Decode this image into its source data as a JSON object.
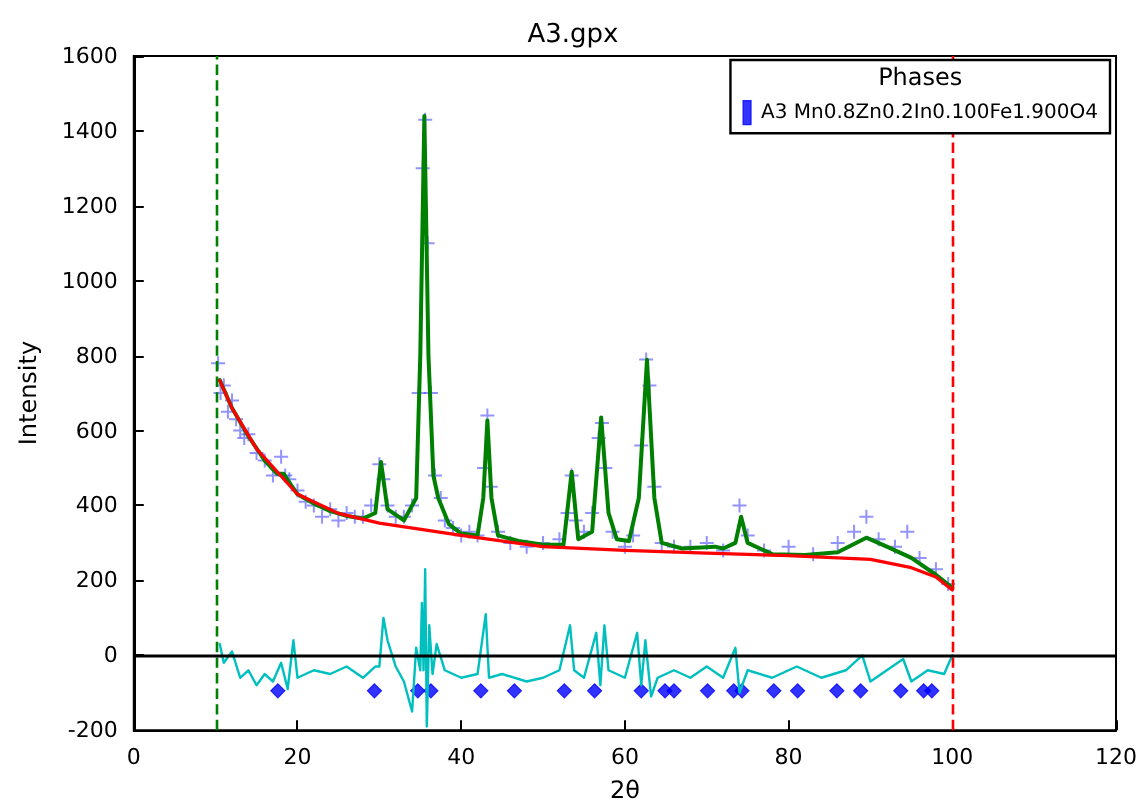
{
  "chart_data": {
    "type": "line",
    "title": "A3.gpx",
    "xlabel": "2θ",
    "ylabel": "Intensity",
    "legend_title": "Phases",
    "legend": "top right",
    "grid": false,
    "xlim": [
      0,
      120
    ],
    "xticks": [
      0,
      20,
      40,
      60,
      80,
      100,
      120
    ],
    "ylim": [
      -200,
      1600
    ],
    "yticks": [
      -200,
      0,
      200,
      400,
      600,
      800,
      1000,
      1200,
      1400,
      1600
    ],
    "ref_lines": [
      {
        "axis": "x",
        "value": 10,
        "color": "#008000",
        "line_style": "dashed"
      },
      {
        "axis": "x",
        "value": 100,
        "color": "#ff0000",
        "line_style": "dashed"
      },
      {
        "axis": "y",
        "value": 0,
        "color": "#000000",
        "line_style": "solid"
      }
    ],
    "series": [
      {
        "type": "scatter",
        "marker": "cross",
        "color": "#3b3bff",
        "x": [
          10.3,
          10.6,
          11,
          11.5,
          12,
          12.5,
          13,
          13.5,
          14,
          15,
          16,
          17,
          18,
          18.5,
          19,
          20,
          21,
          22,
          23,
          24,
          25,
          26,
          27,
          28,
          29,
          30,
          30.5,
          31,
          32,
          33,
          34,
          34.8,
          35.3,
          35.6,
          35.9,
          36.3,
          36.8,
          37.5,
          38,
          39,
          40,
          41,
          42,
          42.8,
          43.2,
          43.6,
          44.5,
          46,
          48,
          50,
          52,
          53,
          53.5,
          54,
          55,
          56,
          56.8,
          57.2,
          57.6,
          58.5,
          60,
          61,
          62,
          62.6,
          63,
          63.6,
          64.5,
          66,
          68,
          70,
          72,
          74,
          75,
          77,
          80,
          83,
          86,
          88,
          89.5,
          91,
          93,
          94.5,
          96,
          98,
          99.5
        ],
        "values": [
          780,
          700,
          720,
          650,
          680,
          630,
          600,
          580,
          590,
          540,
          520,
          480,
          530,
          480,
          470,
          440,
          410,
          400,
          370,
          390,
          360,
          380,
          370,
          370,
          400,
          510,
          470,
          400,
          370,
          370,
          400,
          700,
          1300,
          1430,
          1100,
          700,
          480,
          420,
          360,
          340,
          320,
          330,
          320,
          500,
          640,
          450,
          330,
          300,
          290,
          300,
          310,
          380,
          480,
          360,
          330,
          380,
          580,
          620,
          500,
          330,
          290,
          320,
          560,
          790,
          720,
          450,
          300,
          290,
          290,
          300,
          280,
          400,
          320,
          280,
          290,
          270,
          300,
          330,
          370,
          310,
          290,
          330,
          260,
          230,
          190
        ]
      },
      {
        "marker": "none",
        "color": "#008000",
        "x": [
          10.5,
          12,
          14,
          16,
          17.5,
          18.3,
          19.2,
          20,
          22,
          24,
          26,
          28,
          29.5,
          30.2,
          31,
          33,
          34.5,
          35,
          35.5,
          36,
          36.6,
          37.2,
          38.5,
          40,
          42,
          42.7,
          43.2,
          43.7,
          44.5,
          47,
          50,
          52.5,
          53.5,
          54.3,
          56,
          57.1,
          58,
          59,
          60.5,
          61.7,
          62.7,
          63.6,
          64.5,
          67,
          71,
          72,
          73.5,
          74.2,
          75,
          78,
          82,
          86,
          89.5,
          92,
          95,
          98,
          100
        ],
        "values": [
          735,
          660,
          585,
          520,
          485,
          485,
          455,
          430,
          405,
          385,
          372,
          365,
          380,
          516,
          390,
          360,
          420,
          800,
          1440,
          800,
          480,
          420,
          350,
          325,
          320,
          420,
          627,
          420,
          320,
          305,
          295,
          295,
          490,
          310,
          330,
          635,
          380,
          310,
          305,
          420,
          789,
          420,
          300,
          285,
          290,
          285,
          300,
          370,
          300,
          270,
          268,
          275,
          314,
          290,
          260,
          215,
          180
        ]
      },
      {
        "marker": "none",
        "color": "#ff0000",
        "x": [
          10.5,
          12,
          15,
          20,
          25,
          30,
          40,
          50,
          60,
          70,
          80,
          90,
          95,
          98,
          100
        ],
        "values": [
          734,
          660,
          551,
          430,
          379,
          353,
          320,
          290,
          280,
          273,
          266,
          256,
          234,
          209,
          174
        ]
      },
      {
        "marker": "none",
        "color": "#00bfbf",
        "x": [
          10.5,
          11,
          12,
          13,
          14,
          15,
          16,
          17,
          18,
          18.8,
          19.5,
          20,
          22,
          24,
          26,
          28,
          29.5,
          30,
          30.5,
          31,
          32,
          33,
          34,
          34.5,
          35,
          35.2,
          35.4,
          35.6,
          35.8,
          36.1,
          36.5,
          37,
          38,
          40,
          42,
          43,
          43.4,
          45,
          48,
          50,
          52,
          53.3,
          53.8,
          55,
          56.5,
          57,
          57.5,
          58,
          60,
          61.5,
          62,
          62.5,
          63.2,
          64,
          66,
          68,
          70,
          72,
          73.5,
          74,
          75,
          78,
          81,
          84,
          87,
          89,
          90,
          92,
          94,
          95,
          97,
          99,
          100
        ],
        "values": [
          30,
          -20,
          10,
          -60,
          -40,
          -80,
          -50,
          -70,
          -20,
          -90,
          40,
          -60,
          -40,
          -50,
          -30,
          -60,
          -30,
          -30,
          100,
          40,
          -30,
          -70,
          -150,
          20,
          -40,
          140,
          -40,
          230,
          -190,
          80,
          -50,
          30,
          -40,
          -60,
          -50,
          110,
          -60,
          -50,
          -70,
          -60,
          -40,
          80,
          -40,
          -60,
          60,
          -80,
          80,
          -40,
          -60,
          60,
          -80,
          40,
          -110,
          -60,
          -40,
          -60,
          -30,
          -60,
          20,
          -100,
          -40,
          -60,
          -30,
          -60,
          -40,
          0,
          -70,
          -40,
          -10,
          -70,
          -40,
          -50,
          0
        ]
      },
      {
        "type": "scatter",
        "marker": "diamond",
        "name": "A3 Mn0.8Zn0.2In0.100Fe1.900O4",
        "color": "#0000ff",
        "x": [
          17.6,
          29.4,
          34.7,
          36.3,
          42.4,
          46.5,
          52.6,
          56.3,
          62.0,
          64.9,
          66.0,
          70.1,
          73.3,
          74.3,
          78.2,
          81.1,
          85.9,
          88.8,
          93.7,
          96.5,
          97.5
        ],
        "values": [
          -95,
          -95,
          -95,
          -95,
          -95,
          -95,
          -95,
          -95,
          -95,
          -95,
          -95,
          -95,
          -95,
          -95,
          -95,
          -95,
          -95,
          -95,
          -95,
          -95,
          -95
        ]
      }
    ]
  }
}
